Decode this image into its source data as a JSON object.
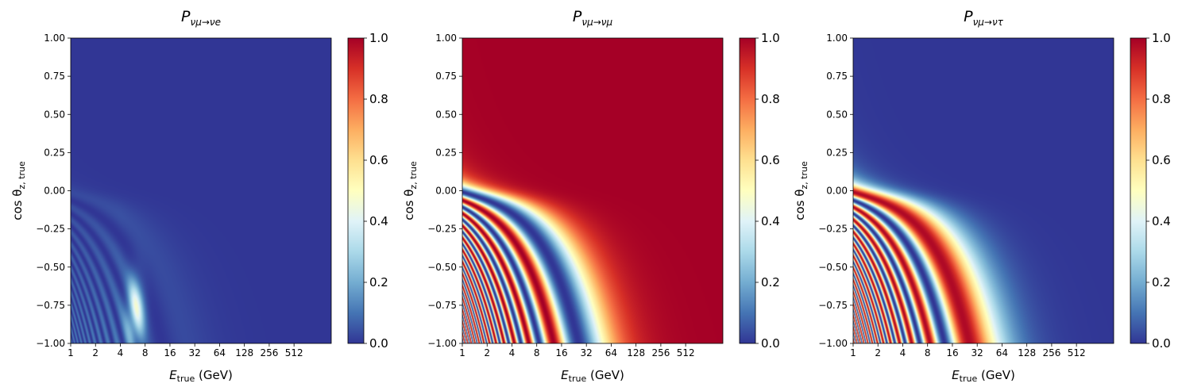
{
  "chart_data": [
    {
      "type": "heatmap",
      "title": "P_{νμ→νe}",
      "title_main": "P",
      "title_sub": "νμ→νe",
      "xlabel_main": "E",
      "xlabel_sub": "true",
      "xlabel_unit": " (GeV)",
      "ylabel_main": "cos θ",
      "ylabel_sub": "z, true",
      "x_scale": "log2",
      "xlim": [
        1,
        1448
      ],
      "ylim": [
        -1.0,
        1.0
      ],
      "x_ticks": [
        1,
        2,
        4,
        8,
        16,
        32,
        64,
        128,
        256,
        512
      ],
      "x_tick_labels": [
        "1",
        "2",
        "4",
        "8",
        "16",
        "32",
        "64",
        "128",
        "256",
        "512"
      ],
      "y_ticks": [
        -1.0,
        -0.75,
        -0.5,
        -0.25,
        0.0,
        0.25,
        0.5,
        0.75,
        1.0
      ],
      "y_tick_labels": [
        "−1.00",
        "−0.75",
        "−0.50",
        "−0.25",
        "0.00",
        "0.25",
        "0.50",
        "0.75",
        "1.00"
      ],
      "colormap": "RdYlBu_r",
      "colorbar": {
        "range": [
          0.0,
          1.0
        ],
        "ticks": [
          "0.0",
          "0.2",
          "0.4",
          "0.6",
          "0.8",
          "1.0"
        ]
      },
      "pattern": "Mostly ≈0; faint oscillation bands for cosθ < 0 at low energy; broad light maximum (~0.45) near E≈6 GeV, cosθ≈−0.8; discontinuity at cosθ≈−0.84 (core crossing)."
    },
    {
      "type": "heatmap",
      "title": "P_{νμ→νμ}",
      "title_main": "P",
      "title_sub": "νμ→νμ",
      "xlabel_main": "E",
      "xlabel_sub": "true",
      "xlabel_unit": " (GeV)",
      "ylabel_main": "cos θ",
      "ylabel_sub": "z, true",
      "x_scale": "log2",
      "xlim": [
        1,
        1448
      ],
      "ylim": [
        -1.0,
        1.0
      ],
      "x_ticks": [
        1,
        2,
        4,
        8,
        16,
        32,
        64,
        128,
        256,
        512
      ],
      "x_tick_labels": [
        "1",
        "2",
        "4",
        "8",
        "16",
        "32",
        "64",
        "128",
        "256",
        "512"
      ],
      "y_ticks": [
        -1.0,
        -0.75,
        -0.5,
        -0.25,
        0.0,
        0.25,
        0.5,
        0.75,
        1.0
      ],
      "y_tick_labels": [
        "−1.00",
        "−0.75",
        "−0.50",
        "−0.25",
        "0.00",
        "0.25",
        "0.50",
        "0.75",
        "1.00"
      ],
      "colormap": "RdYlBu_r",
      "colorbar": {
        "range": [
          0.0,
          1.0
        ],
        "ticks": [
          "0.0",
          "0.2",
          "0.4",
          "0.6",
          "0.8",
          "1.0"
        ]
      },
      "pattern": "≈1 for downgoing (cosθ > 0) and high energies; oscillation minima bands curving down for cosθ < 0, first minimum reaching E≈25 GeV at cosθ=−1."
    },
    {
      "type": "heatmap",
      "title": "P_{νμ→ντ}",
      "title_main": "P",
      "title_sub": "νμ→ντ",
      "xlabel_main": "E",
      "xlabel_sub": "true",
      "xlabel_unit": " (GeV)",
      "ylabel_main": "cos θ",
      "ylabel_sub": "z, true",
      "x_scale": "log2",
      "xlim": [
        1,
        1448
      ],
      "ylim": [
        -1.0,
        1.0
      ],
      "x_ticks": [
        1,
        2,
        4,
        8,
        16,
        32,
        64,
        128,
        256,
        512
      ],
      "x_tick_labels": [
        "1",
        "2",
        "4",
        "8",
        "16",
        "32",
        "64",
        "128",
        "256",
        "512"
      ],
      "y_ticks": [
        -1.0,
        -0.75,
        -0.5,
        -0.25,
        0.0,
        0.25,
        0.5,
        0.75,
        1.0
      ],
      "y_tick_labels": [
        "−1.00",
        "−0.75",
        "−0.50",
        "−0.25",
        "0.00",
        "0.25",
        "0.50",
        "0.75",
        "1.00"
      ],
      "colormap": "RdYlBu_r",
      "colorbar": {
        "range": [
          0.0,
          1.0
        ],
        "ticks": [
          "0.0",
          "0.2",
          "0.4",
          "0.6",
          "0.8",
          "1.0"
        ]
      },
      "pattern": "≈0 for downgoing; oscillation maxima bands (≈1) for cosθ < 0, first maximum reaching E≈25 GeV at cosθ=−1."
    }
  ]
}
